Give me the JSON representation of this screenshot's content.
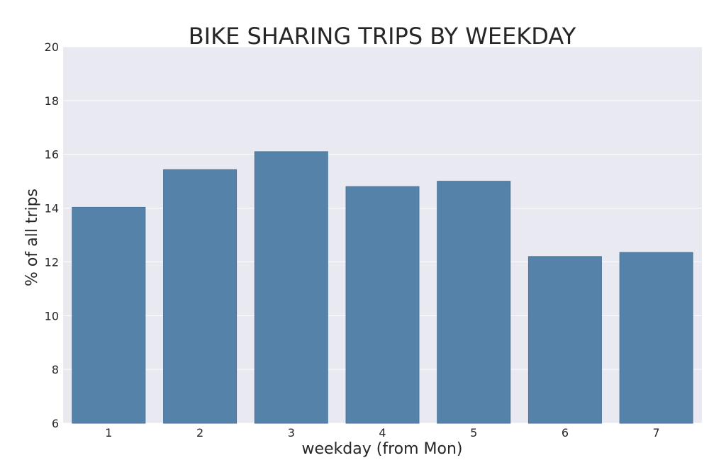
{
  "chart_data": {
    "type": "bar",
    "title": "BIKE SHARING TRIPS BY WEEKDAY",
    "xlabel": "weekday (from Mon)",
    "ylabel": "% of all trips",
    "categories": [
      "1",
      "2",
      "3",
      "4",
      "5",
      "6",
      "7"
    ],
    "values": [
      14.03,
      15.43,
      16.1,
      14.8,
      15.0,
      12.2,
      12.35
    ],
    "ylim": [
      6,
      20
    ],
    "yticks": [
      6,
      8,
      10,
      12,
      14,
      16,
      18,
      20
    ],
    "grid": true,
    "colors": {
      "bar": "#5582a9",
      "bar_edge": "#4a739a",
      "plot_background": "#e9e9f1",
      "grid": "#ffffff",
      "text": "#262626"
    }
  }
}
